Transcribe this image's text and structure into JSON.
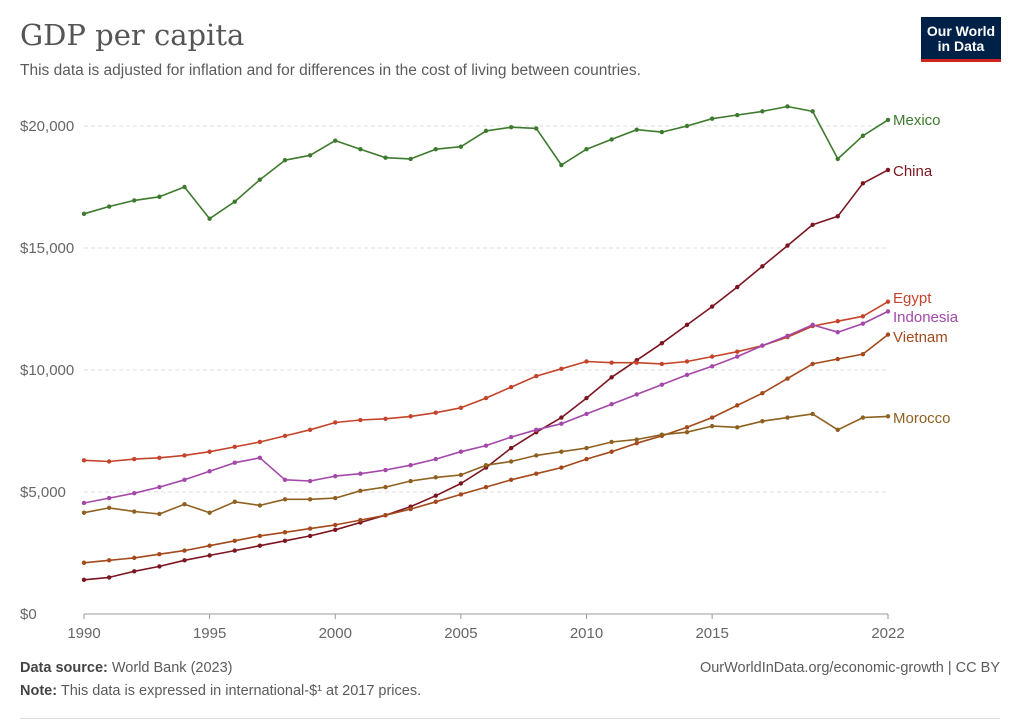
{
  "header": {
    "title": "GDP per capita",
    "subtitle": "This data is adjusted for inflation and for differences in the cost of living between countries."
  },
  "logo": {
    "line1": "Our World",
    "line2": "in Data"
  },
  "footer": {
    "source_label": "Data source:",
    "source_value": "World Bank (2023)",
    "note_label": "Note:",
    "note_value": "This data is expressed in international-$¹ at 2017 prices.",
    "link": "OurWorldInData.org/economic-growth | CC BY"
  },
  "colors": {
    "grid": "#dddddd",
    "axis": "#999999",
    "tick_text": "#666666"
  },
  "chart_data": {
    "type": "line",
    "title": "GDP per capita",
    "x": [
      1990,
      1991,
      1992,
      1993,
      1994,
      1995,
      1996,
      1997,
      1998,
      1999,
      2000,
      2001,
      2002,
      2003,
      2004,
      2005,
      2006,
      2007,
      2008,
      2009,
      2010,
      2011,
      2012,
      2013,
      2014,
      2015,
      2016,
      2017,
      2018,
      2019,
      2020,
      2021,
      2022
    ],
    "xlim": [
      1990,
      2022
    ],
    "ylim": [
      0,
      20000
    ],
    "x_ticks": [
      1990,
      1995,
      2000,
      2005,
      2010,
      2015,
      2022
    ],
    "y_ticks": [
      0,
      5000,
      10000,
      15000,
      20000
    ],
    "y_tick_labels": [
      "$0",
      "$5,000",
      "$10,000",
      "$15,000",
      "$20,000"
    ],
    "grid": "horizontal-dashed",
    "legend": "line-end labels",
    "series": [
      {
        "name": "Mexico",
        "color": "#3e7a2e",
        "values": [
          16400,
          16700,
          16950,
          17100,
          17500,
          16200,
          16900,
          17800,
          18600,
          18800,
          19400,
          19050,
          18700,
          18650,
          19050,
          19150,
          19800,
          19950,
          19900,
          18400,
          19050,
          19450,
          19850,
          19750,
          20000,
          20300,
          20450,
          20600,
          20800,
          20600,
          18650,
          19600,
          20250
        ]
      },
      {
        "name": "China",
        "color": "#7b1520",
        "values": [
          1400,
          1500,
          1750,
          1950,
          2200,
          2400,
          2600,
          2800,
          3000,
          3200,
          3450,
          3750,
          4050,
          4400,
          4850,
          5350,
          6000,
          6800,
          7450,
          8050,
          8850,
          9700,
          10400,
          11100,
          11850,
          12600,
          13400,
          14250,
          15100,
          15950,
          16300,
          17650,
          18200
        ]
      },
      {
        "name": "Egypt",
        "color": "#c4442b",
        "values": [
          6300,
          6250,
          6350,
          6400,
          6500,
          6650,
          6850,
          7050,
          7300,
          7550,
          7850,
          7950,
          8000,
          8100,
          8250,
          8450,
          8850,
          9300,
          9750,
          10050,
          10350,
          10300,
          10300,
          10250,
          10350,
          10550,
          10750,
          11000,
          11350,
          11800,
          12000,
          12200,
          12800
        ]
      },
      {
        "name": "Indonesia",
        "color": "#a348a8",
        "values": [
          4550,
          4750,
          4950,
          5200,
          5500,
          5850,
          6200,
          6400,
          5500,
          5450,
          5650,
          5750,
          5900,
          6100,
          6350,
          6650,
          6900,
          7250,
          7550,
          7800,
          8200,
          8600,
          9000,
          9400,
          9800,
          10150,
          10550,
          11000,
          11400,
          11850,
          11550,
          11900,
          12400
        ]
      },
      {
        "name": "Vietnam",
        "color": "#a3491b",
        "values": [
          2100,
          2200,
          2300,
          2450,
          2600,
          2800,
          3000,
          3200,
          3350,
          3500,
          3650,
          3850,
          4050,
          4300,
          4600,
          4900,
          5200,
          5500,
          5750,
          6000,
          6350,
          6650,
          7000,
          7300,
          7650,
          8050,
          8550,
          9050,
          9650,
          10250,
          10450,
          10650,
          11450
        ]
      },
      {
        "name": "Morocco",
        "color": "#8f6121",
        "values": [
          4150,
          4350,
          4200,
          4100,
          4500,
          4150,
          4600,
          4450,
          4700,
          4700,
          4750,
          5050,
          5200,
          5450,
          5600,
          5700,
          6100,
          6250,
          6500,
          6650,
          6800,
          7050,
          7150,
          7350,
          7450,
          7700,
          7650,
          7900,
          8050,
          8200,
          7550,
          8050,
          8100
        ]
      }
    ]
  }
}
